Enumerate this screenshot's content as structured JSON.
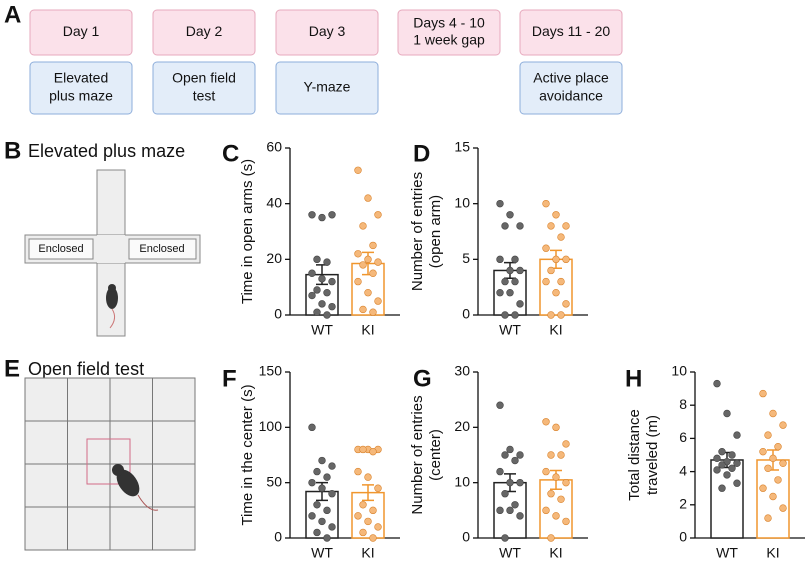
{
  "header": {
    "panel": "A"
  },
  "timeline": [
    {
      "day": [
        "Day 1"
      ],
      "task": [
        "Elevated",
        "plus maze"
      ]
    },
    {
      "day": [
        "Day 2"
      ],
      "task": [
        "Open field",
        "test"
      ]
    },
    {
      "day": [
        "Day 3"
      ],
      "task": [
        "Y-maze"
      ]
    },
    {
      "day": [
        "Days 4 - 10",
        "1 week gap"
      ]
    },
    {
      "day": [
        "Days 11 - 20"
      ],
      "task": [
        "Active place",
        "avoidance"
      ]
    }
  ],
  "maze": {
    "panel": "B",
    "title": "Elevated plus maze",
    "arm_left": "Enclosed",
    "arm_right": "Enclosed"
  },
  "open_field": {
    "panel": "E",
    "title": "Open field test"
  },
  "chart_data": [
    {
      "type": "bar",
      "panel": "C",
      "ylabel": [
        "Time in open arms (s)"
      ],
      "categories": [
        "WT",
        "KI"
      ],
      "colors": [
        "#222222",
        "#f0962e"
      ],
      "dot_colors": [
        "#666666",
        "#f5b87a"
      ],
      "values": [
        14.5,
        18.5
      ],
      "errors": [
        3.5,
        4
      ],
      "points": [
        [
          36,
          35,
          36,
          20,
          19,
          15,
          13,
          12,
          9,
          8,
          7,
          4,
          3,
          1,
          0
        ],
        [
          52,
          42,
          36,
          32,
          25,
          22,
          20,
          19,
          18,
          15,
          12,
          8,
          5,
          2,
          1
        ]
      ],
      "ylim": [
        0,
        60
      ],
      "yticks": [
        0,
        20,
        40,
        60
      ]
    },
    {
      "type": "bar",
      "panel": "D",
      "ylabel": [
        "Number of entries",
        "(open arm)"
      ],
      "categories": [
        "WT",
        "KI"
      ],
      "colors": [
        "#222222",
        "#f0962e"
      ],
      "dot_colors": [
        "#666666",
        "#f5b87a"
      ],
      "values": [
        4,
        5
      ],
      "errors": [
        0.7,
        0.8
      ],
      "points": [
        [
          10,
          9,
          8,
          8,
          5,
          5,
          4,
          4,
          3,
          3,
          2,
          2,
          1,
          0,
          0
        ],
        [
          10,
          9,
          8,
          8,
          7,
          6,
          5,
          5,
          4,
          3,
          3,
          2,
          1,
          0,
          0
        ]
      ],
      "ylim": [
        0,
        15
      ],
      "yticks": [
        0,
        5,
        10,
        15
      ]
    },
    {
      "type": "bar",
      "panel": "F",
      "ylabel": [
        "Time in the center (s)"
      ],
      "categories": [
        "WT",
        "KI"
      ],
      "colors": [
        "#222222",
        "#f0962e"
      ],
      "dot_colors": [
        "#666666",
        "#f5b87a"
      ],
      "values": [
        42,
        41
      ],
      "errors": [
        8,
        7
      ],
      "points": [
        [
          100,
          70,
          65,
          60,
          55,
          50,
          45,
          40,
          30,
          25,
          20,
          15,
          10,
          5,
          0
        ],
        [
          80,
          80,
          80,
          80,
          78,
          60,
          55,
          45,
          30,
          25,
          20,
          15,
          10,
          5,
          0
        ]
      ],
      "ylim": [
        0,
        150
      ],
      "yticks": [
        0,
        50,
        100,
        150
      ]
    },
    {
      "type": "bar",
      "panel": "G",
      "ylabel": [
        "Number of entries",
        "(center)"
      ],
      "categories": [
        "WT",
        "KI"
      ],
      "colors": [
        "#222222",
        "#f0962e"
      ],
      "dot_colors": [
        "#666666",
        "#f5b87a"
      ],
      "values": [
        10,
        10.5
      ],
      "errors": [
        1.6,
        1.7
      ],
      "points": [
        [
          24,
          16,
          15,
          15,
          14,
          12,
          10,
          10,
          8,
          6,
          5,
          5,
          4,
          0
        ],
        [
          21,
          20,
          17,
          15,
          15,
          12,
          11,
          10,
          8,
          7,
          5,
          4,
          3,
          0
        ]
      ],
      "ylim": [
        0,
        30
      ],
      "yticks": [
        0,
        10,
        20,
        30
      ]
    },
    {
      "type": "bar",
      "panel": "H",
      "ylabel": [
        "Total distance",
        "traveled (m)"
      ],
      "categories": [
        "WT",
        "KI"
      ],
      "colors": [
        "#222222",
        "#f0962e"
      ],
      "dot_colors": [
        "#666666",
        "#f5b87a"
      ],
      "values": [
        4.7,
        4.7
      ],
      "errors": [
        0.45,
        0.6
      ],
      "points": [
        [
          9.3,
          7.5,
          6.2,
          5.2,
          5,
          4.8,
          4.6,
          4.5,
          4.4,
          4.2,
          4.1,
          3.8,
          3.3,
          3
        ],
        [
          8.7,
          7.5,
          6.8,
          6.2,
          5.5,
          5.2,
          4.8,
          4.5,
          4.2,
          3.5,
          3,
          2.5,
          1.8,
          1.2
        ]
      ],
      "ylim": [
        0,
        10
      ],
      "yticks": [
        0,
        2,
        4,
        6,
        8,
        10
      ]
    }
  ]
}
